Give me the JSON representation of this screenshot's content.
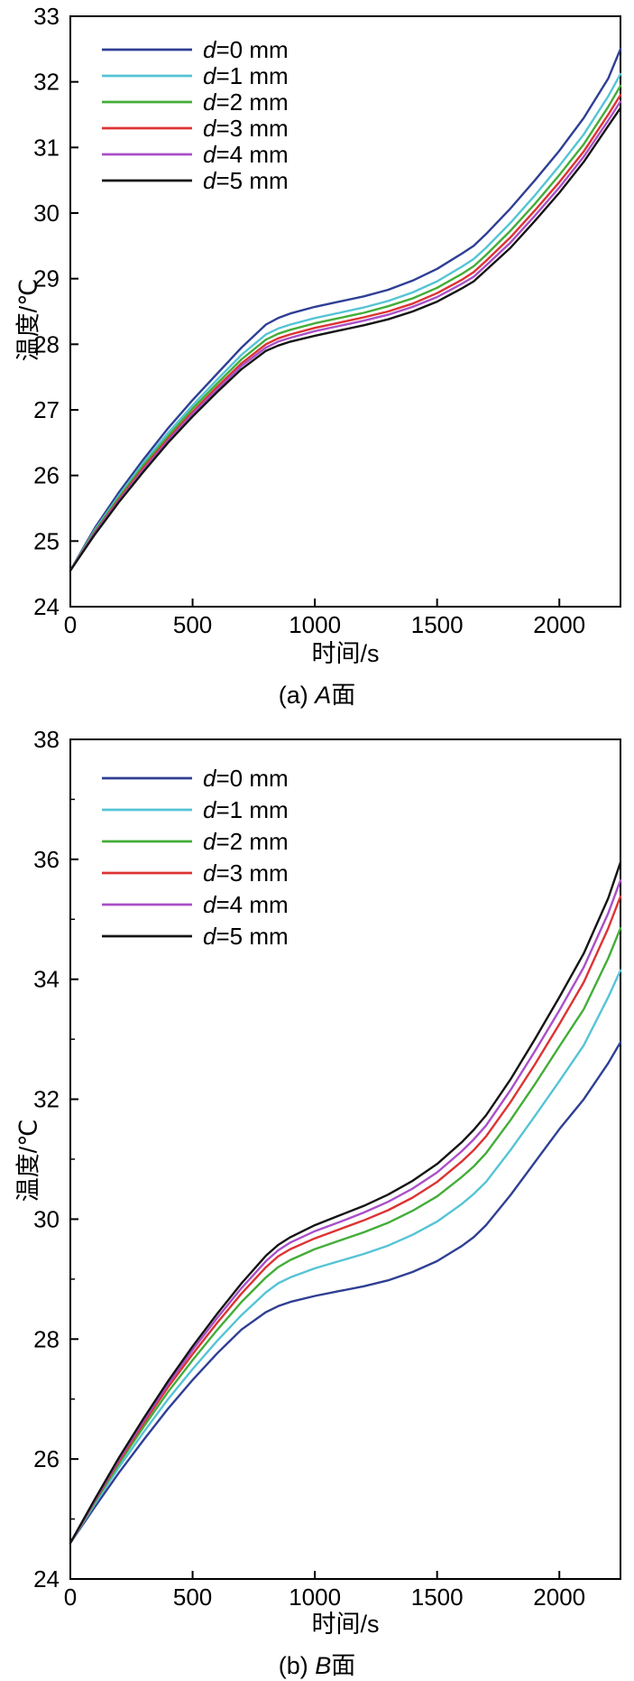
{
  "chart_data": [
    {
      "type": "line",
      "caption": "(a) A面",
      "caption_parts": {
        "prefix": "(a) ",
        "var": "A",
        "suffix": "面"
      },
      "xlabel": "时间/s",
      "ylabel": "温度/℃",
      "xlim": [
        0,
        2250
      ],
      "ylim": [
        24,
        33
      ],
      "xticks": [
        0,
        500,
        1000,
        1500,
        2000
      ],
      "yticks": [
        24,
        25,
        26,
        27,
        28,
        29,
        30,
        31,
        32,
        33
      ],
      "yticks_minor": [],
      "grid": false,
      "legend_position": "top-left",
      "x": [
        0,
        100,
        200,
        300,
        400,
        500,
        600,
        700,
        800,
        850,
        900,
        1000,
        1100,
        1200,
        1300,
        1400,
        1500,
        1600,
        1650,
        1700,
        1800,
        1900,
        2000,
        2100,
        2200,
        2250
      ],
      "series": [
        {
          "name": "d=0 mm",
          "color": "#2f3f94",
          "values": [
            24.55,
            25.2,
            25.75,
            26.25,
            26.72,
            27.15,
            27.55,
            27.95,
            28.3,
            28.4,
            28.47,
            28.57,
            28.65,
            28.73,
            28.83,
            28.97,
            29.15,
            29.38,
            29.5,
            29.68,
            30.07,
            30.5,
            30.95,
            31.45,
            32.05,
            32.5
          ]
        },
        {
          "name": "d=1 mm",
          "color": "#55c4d5",
          "values": [
            24.55,
            25.17,
            25.7,
            26.2,
            26.65,
            27.07,
            27.46,
            27.84,
            28.15,
            28.24,
            28.3,
            28.4,
            28.48,
            28.56,
            28.66,
            28.79,
            28.96,
            29.18,
            29.3,
            29.47,
            29.85,
            30.27,
            30.72,
            31.2,
            31.78,
            32.12
          ]
        },
        {
          "name": "d=2 mm",
          "color": "#43ad38",
          "values": [
            24.55,
            25.15,
            25.67,
            26.16,
            26.6,
            27.02,
            27.4,
            27.77,
            28.07,
            28.16,
            28.22,
            28.32,
            28.4,
            28.48,
            28.58,
            28.7,
            28.86,
            29.07,
            29.19,
            29.36,
            29.73,
            30.14,
            30.58,
            31.05,
            31.62,
            31.94
          ]
        },
        {
          "name": "d=3 mm",
          "color": "#dd3333",
          "values": [
            24.55,
            25.13,
            25.64,
            26.12,
            26.56,
            26.97,
            27.35,
            27.71,
            28.0,
            28.09,
            28.15,
            28.25,
            28.33,
            28.41,
            28.5,
            28.62,
            28.78,
            28.98,
            29.1,
            29.27,
            29.63,
            30.04,
            30.47,
            30.94,
            31.5,
            31.8
          ]
        },
        {
          "name": "d=4 mm",
          "color": "#aa4fc8",
          "values": [
            24.55,
            25.12,
            25.62,
            26.09,
            26.53,
            26.94,
            27.31,
            27.67,
            27.95,
            28.04,
            28.1,
            28.2,
            28.28,
            28.36,
            28.45,
            28.57,
            28.72,
            28.92,
            29.03,
            29.2,
            29.55,
            29.96,
            30.39,
            30.86,
            31.41,
            31.7
          ]
        },
        {
          "name": "d=5 mm",
          "color": "#141414",
          "values": [
            24.55,
            25.1,
            25.6,
            26.06,
            26.5,
            26.9,
            27.27,
            27.62,
            27.9,
            27.98,
            28.04,
            28.13,
            28.21,
            28.29,
            28.38,
            28.5,
            28.65,
            28.85,
            28.96,
            29.13,
            29.47,
            29.88,
            30.31,
            30.78,
            31.33,
            31.6
          ]
        }
      ]
    },
    {
      "type": "line",
      "caption": "(b) B面",
      "caption_parts": {
        "prefix": "(b) ",
        "var": "B",
        "suffix": "面"
      },
      "xlabel": "时间/s",
      "ylabel": "温度/℃",
      "xlim": [
        0,
        2250
      ],
      "ylim": [
        24,
        38
      ],
      "xticks": [
        0,
        500,
        1000,
        1500,
        2000
      ],
      "yticks": [
        24,
        26,
        28,
        30,
        32,
        34,
        36,
        38
      ],
      "yticks_minor": [
        25,
        27,
        29,
        31,
        33,
        35,
        37
      ],
      "grid": false,
      "legend_position": "top-left",
      "x": [
        0,
        100,
        200,
        300,
        400,
        500,
        600,
        700,
        800,
        850,
        900,
        1000,
        1100,
        1200,
        1300,
        1400,
        1500,
        1600,
        1650,
        1700,
        1800,
        1900,
        2000,
        2100,
        2200,
        2250
      ],
      "series": [
        {
          "name": "d=0 mm",
          "color": "#2f3f94",
          "values": [
            24.6,
            25.2,
            25.78,
            26.32,
            26.84,
            27.32,
            27.76,
            28.16,
            28.45,
            28.55,
            28.62,
            28.72,
            28.8,
            28.88,
            28.98,
            29.12,
            29.3,
            29.55,
            29.7,
            29.9,
            30.4,
            30.95,
            31.5,
            32.0,
            32.6,
            32.95
          ]
        },
        {
          "name": "d=1 mm",
          "color": "#55c4d5",
          "values": [
            24.6,
            25.25,
            25.87,
            26.45,
            27.0,
            27.5,
            27.97,
            28.4,
            28.78,
            28.93,
            29.03,
            29.18,
            29.3,
            29.42,
            29.56,
            29.74,
            29.96,
            30.25,
            30.42,
            30.62,
            31.15,
            31.72,
            32.3,
            32.9,
            33.7,
            34.15
          ]
        },
        {
          "name": "d=2 mm",
          "color": "#43ad38",
          "values": [
            24.6,
            25.28,
            25.93,
            26.54,
            27.12,
            27.65,
            28.15,
            28.62,
            29.03,
            29.2,
            29.32,
            29.5,
            29.64,
            29.78,
            29.94,
            30.14,
            30.38,
            30.7,
            30.88,
            31.1,
            31.65,
            32.25,
            32.88,
            33.5,
            34.35,
            34.85
          ]
        },
        {
          "name": "d=3 mm",
          "color": "#dd3333",
          "values": [
            24.6,
            25.3,
            25.97,
            26.6,
            27.2,
            27.75,
            28.27,
            28.76,
            29.2,
            29.38,
            29.5,
            29.68,
            29.83,
            29.98,
            30.15,
            30.36,
            30.62,
            30.96,
            31.15,
            31.38,
            31.95,
            32.58,
            33.25,
            33.95,
            34.85,
            35.38
          ]
        },
        {
          "name": "d=4 mm",
          "color": "#aa4fc8",
          "values": [
            24.6,
            25.31,
            26.0,
            26.64,
            27.25,
            27.82,
            28.35,
            28.85,
            29.3,
            29.48,
            29.61,
            29.8,
            29.95,
            30.11,
            30.29,
            30.51,
            30.78,
            31.13,
            31.33,
            31.56,
            32.15,
            32.8,
            33.48,
            34.2,
            35.1,
            35.65
          ]
        },
        {
          "name": "d=5 mm",
          "color": "#141414",
          "values": [
            24.6,
            25.33,
            26.03,
            26.68,
            27.3,
            27.88,
            28.42,
            28.93,
            29.39,
            29.57,
            29.7,
            29.9,
            30.06,
            30.22,
            30.41,
            30.64,
            30.92,
            31.28,
            31.49,
            31.73,
            32.33,
            33.0,
            33.7,
            34.43,
            35.35,
            35.95
          ]
        }
      ]
    }
  ]
}
